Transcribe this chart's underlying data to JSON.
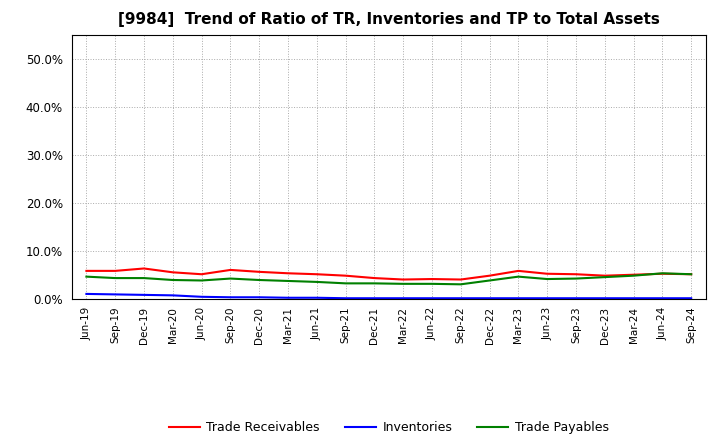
{
  "title": "[9984]  Trend of Ratio of TR, Inventories and TP to Total Assets",
  "x_labels": [
    "Jun-19",
    "Sep-19",
    "Dec-19",
    "Mar-20",
    "Jun-20",
    "Sep-20",
    "Dec-20",
    "Mar-21",
    "Jun-21",
    "Sep-21",
    "Dec-21",
    "Mar-22",
    "Jun-22",
    "Sep-22",
    "Dec-22",
    "Mar-23",
    "Jun-23",
    "Sep-23",
    "Dec-23",
    "Mar-24",
    "Jun-24",
    "Sep-24"
  ],
  "trade_receivables": [
    0.059,
    0.059,
    0.064,
    0.056,
    0.052,
    0.061,
    0.057,
    0.054,
    0.052,
    0.049,
    0.044,
    0.041,
    0.042,
    0.041,
    0.049,
    0.059,
    0.053,
    0.052,
    0.049,
    0.051,
    0.053,
    0.052
  ],
  "inventories": [
    0.011,
    0.01,
    0.009,
    0.008,
    0.005,
    0.004,
    0.004,
    0.003,
    0.003,
    0.002,
    0.002,
    0.002,
    0.002,
    0.002,
    0.002,
    0.002,
    0.002,
    0.002,
    0.002,
    0.002,
    0.002,
    0.002
  ],
  "trade_payables": [
    0.047,
    0.044,
    0.044,
    0.04,
    0.039,
    0.043,
    0.04,
    0.038,
    0.036,
    0.033,
    0.033,
    0.032,
    0.032,
    0.031,
    0.039,
    0.047,
    0.042,
    0.043,
    0.046,
    0.049,
    0.054,
    0.052
  ],
  "colors": {
    "trade_receivables": "#FF0000",
    "inventories": "#0000FF",
    "trade_payables": "#008000"
  },
  "ylim": [
    0.0,
    0.55
  ],
  "yticks": [
    0.0,
    0.1,
    0.2,
    0.3,
    0.4,
    0.5
  ],
  "background_color": "#FFFFFF",
  "plot_bg_color": "#FFFFFF",
  "grid_color": "#AAAAAA",
  "legend_labels": [
    "Trade Receivables",
    "Inventories",
    "Trade Payables"
  ]
}
